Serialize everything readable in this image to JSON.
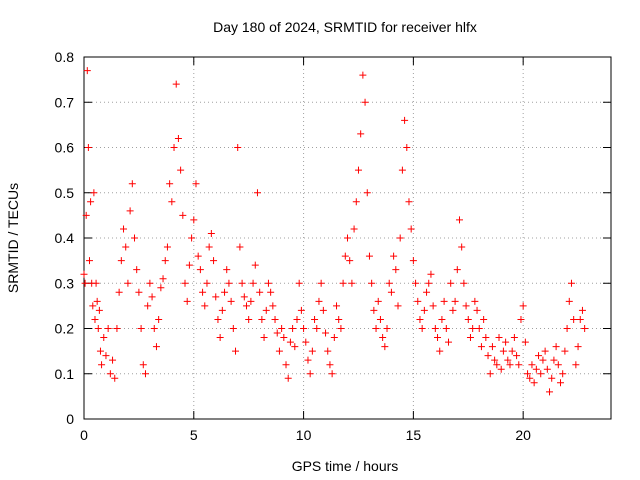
{
  "chart_data": {
    "type": "scatter",
    "title": "Day 180 of 2024, SRMTID for receiver hlfx",
    "xlabel": "GPS time / hours",
    "ylabel": "SRMTID / TECUs",
    "xlim": [
      0,
      24
    ],
    "ylim": [
      0,
      0.8
    ],
    "xticks": [
      0,
      5,
      10,
      15,
      20
    ],
    "xtick_labels": [
      "0",
      "5",
      "10",
      "15",
      "20"
    ],
    "yticks": [
      0,
      0.1,
      0.2,
      0.3,
      0.4,
      0.5,
      0.6,
      0.7,
      0.8
    ],
    "ytick_labels": [
      "0",
      "0.1",
      "0.2",
      "0.3",
      "0.4",
      "0.5",
      "0.6",
      "0.7",
      "0.8"
    ],
    "grid": true,
    "marker": "plus",
    "colors": {
      "series": "#ff0000",
      "axis": "#000000",
      "grid": "#a0a0a0"
    },
    "series": [
      {
        "name": "SRMTID",
        "x": [
          0.0,
          0.05,
          0.1,
          0.15,
          0.2,
          0.25,
          0.3,
          0.35,
          0.4,
          0.45,
          0.5,
          0.55,
          0.6,
          0.65,
          0.7,
          0.75,
          0.8,
          0.9,
          1.0,
          1.1,
          1.2,
          1.3,
          1.4,
          1.5,
          1.6,
          1.7,
          1.8,
          1.9,
          2.0,
          2.1,
          2.2,
          2.3,
          2.4,
          2.5,
          2.6,
          2.7,
          2.8,
          2.9,
          3.0,
          3.1,
          3.2,
          3.3,
          3.4,
          3.5,
          3.6,
          3.7,
          3.8,
          3.9,
          4.0,
          4.1,
          4.2,
          4.3,
          4.4,
          4.5,
          4.6,
          4.7,
          4.8,
          4.9,
          5.0,
          5.1,
          5.2,
          5.3,
          5.4,
          5.5,
          5.6,
          5.7,
          5.8,
          5.9,
          6.0,
          6.1,
          6.2,
          6.3,
          6.4,
          6.5,
          6.6,
          6.7,
          6.8,
          6.9,
          7.0,
          7.1,
          7.2,
          7.3,
          7.4,
          7.5,
          7.6,
          7.7,
          7.8,
          7.9,
          8.0,
          8.1,
          8.2,
          8.3,
          8.4,
          8.5,
          8.6,
          8.7,
          8.8,
          8.9,
          9.0,
          9.1,
          9.2,
          9.3,
          9.4,
          9.5,
          9.6,
          9.7,
          9.8,
          9.9,
          10.0,
          10.1,
          10.2,
          10.3,
          10.4,
          10.5,
          10.6,
          10.7,
          10.8,
          10.9,
          11.0,
          11.1,
          11.2,
          11.3,
          11.4,
          11.5,
          11.6,
          11.7,
          11.8,
          11.9,
          12.0,
          12.1,
          12.2,
          12.3,
          12.4,
          12.5,
          12.6,
          12.7,
          12.8,
          12.9,
          13.0,
          13.1,
          13.2,
          13.3,
          13.4,
          13.5,
          13.6,
          13.7,
          13.8,
          13.9,
          14.0,
          14.1,
          14.2,
          14.3,
          14.4,
          14.5,
          14.6,
          14.7,
          14.8,
          14.9,
          15.0,
          15.1,
          15.2,
          15.3,
          15.4,
          15.5,
          15.6,
          15.7,
          15.8,
          15.9,
          16.0,
          16.1,
          16.2,
          16.3,
          16.4,
          16.5,
          16.6,
          16.7,
          16.8,
          16.9,
          17.0,
          17.1,
          17.2,
          17.3,
          17.4,
          17.5,
          17.6,
          17.7,
          17.8,
          17.9,
          18.0,
          18.1,
          18.2,
          18.3,
          18.4,
          18.5,
          18.6,
          18.7,
          18.8,
          18.9,
          19.0,
          19.1,
          19.2,
          19.3,
          19.4,
          19.5,
          19.6,
          19.7,
          19.8,
          19.9,
          20.0,
          20.1,
          20.2,
          20.3,
          20.4,
          20.5,
          20.6,
          20.7,
          20.8,
          20.9,
          21.0,
          21.1,
          21.2,
          21.3,
          21.4,
          21.5,
          21.6,
          21.7,
          21.8,
          21.9,
          22.0,
          22.1,
          22.2,
          22.3,
          22.4,
          22.5,
          22.6,
          22.7,
          22.8
        ],
        "y": [
          0.32,
          0.3,
          0.45,
          0.77,
          0.6,
          0.35,
          0.48,
          0.3,
          0.25,
          0.5,
          0.22,
          0.3,
          0.26,
          0.2,
          0.24,
          0.15,
          0.12,
          0.18,
          0.14,
          0.2,
          0.1,
          0.13,
          0.09,
          0.2,
          0.28,
          0.35,
          0.42,
          0.38,
          0.3,
          0.46,
          0.52,
          0.4,
          0.33,
          0.28,
          0.2,
          0.12,
          0.1,
          0.25,
          0.3,
          0.27,
          0.2,
          0.16,
          0.22,
          0.29,
          0.31,
          0.35,
          0.38,
          0.52,
          0.48,
          0.6,
          0.74,
          0.62,
          0.55,
          0.45,
          0.3,
          0.26,
          0.34,
          0.4,
          0.44,
          0.52,
          0.36,
          0.33,
          0.28,
          0.25,
          0.3,
          0.38,
          0.41,
          0.35,
          0.27,
          0.22,
          0.18,
          0.24,
          0.28,
          0.33,
          0.3,
          0.26,
          0.2,
          0.15,
          0.6,
          0.38,
          0.3,
          0.27,
          0.25,
          0.22,
          0.26,
          0.3,
          0.34,
          0.5,
          0.28,
          0.22,
          0.18,
          0.24,
          0.3,
          0.28,
          0.25,
          0.22,
          0.19,
          0.15,
          0.2,
          0.18,
          0.12,
          0.09,
          0.17,
          0.2,
          0.16,
          0.22,
          0.3,
          0.24,
          0.2,
          0.17,
          0.13,
          0.1,
          0.15,
          0.22,
          0.2,
          0.26,
          0.3,
          0.24,
          0.19,
          0.15,
          0.12,
          0.1,
          0.18,
          0.25,
          0.22,
          0.2,
          0.3,
          0.36,
          0.4,
          0.35,
          0.3,
          0.42,
          0.48,
          0.55,
          0.63,
          0.76,
          0.7,
          0.5,
          0.36,
          0.3,
          0.24,
          0.2,
          0.26,
          0.22,
          0.18,
          0.16,
          0.2,
          0.3,
          0.28,
          0.36,
          0.33,
          0.25,
          0.4,
          0.55,
          0.66,
          0.6,
          0.48,
          0.42,
          0.35,
          0.3,
          0.26,
          0.22,
          0.2,
          0.24,
          0.28,
          0.3,
          0.32,
          0.25,
          0.2,
          0.18,
          0.15,
          0.22,
          0.26,
          0.2,
          0.17,
          0.3,
          0.24,
          0.26,
          0.33,
          0.44,
          0.38,
          0.3,
          0.25,
          0.22,
          0.18,
          0.2,
          0.26,
          0.24,
          0.2,
          0.16,
          0.22,
          0.18,
          0.14,
          0.1,
          0.16,
          0.13,
          0.12,
          0.18,
          0.11,
          0.15,
          0.17,
          0.13,
          0.12,
          0.15,
          0.18,
          0.14,
          0.12,
          0.22,
          0.25,
          0.17,
          0.1,
          0.09,
          0.12,
          0.08,
          0.11,
          0.14,
          0.1,
          0.13,
          0.15,
          0.11,
          0.06,
          0.09,
          0.13,
          0.16,
          0.12,
          0.08,
          0.1,
          0.15,
          0.2,
          0.26,
          0.3,
          0.22,
          0.12,
          0.16,
          0.22,
          0.24,
          0.2
        ]
      }
    ]
  }
}
